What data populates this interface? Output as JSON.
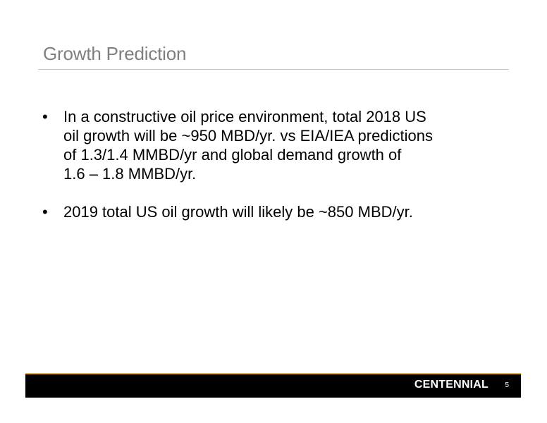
{
  "slide": {
    "title": "Growth Prediction",
    "bullets": [
      {
        "marker": "•",
        "text": "In a constructive oil price environment, total 2018 US\noil growth will be ~950 MBD/yr. vs EIA/IEA predictions\nof 1.3/1.4 MMBD/yr and global demand growth of\n1.6 – 1.8 MMBD/yr."
      },
      {
        "marker": "•",
        "text": "2019 total US oil growth will likely be ~850 MBD/yr."
      }
    ]
  },
  "footer": {
    "logo_text": "CENTENNIAL",
    "page_number": "5",
    "bar_color": "#000000",
    "accent_color": "#f2b705"
  }
}
